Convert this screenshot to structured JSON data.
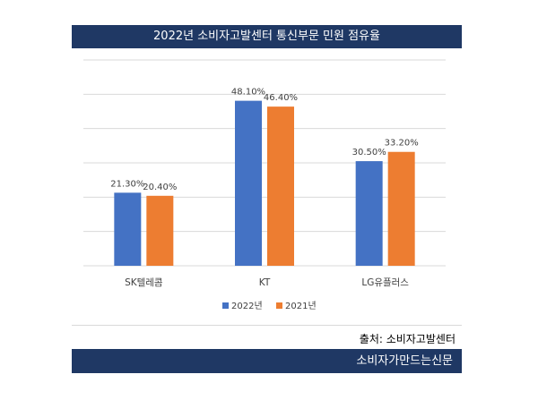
{
  "header": {
    "title": "2022년 소비자고발센터 통신부문 민원 점유율"
  },
  "source_text": "출처: 소비자고발센터",
  "footer": {
    "brand": "소비자가만드는신문"
  },
  "colors": {
    "banner": "#1f3864",
    "series_2022": "#4472c4",
    "series_2021": "#ed7d31",
    "grid": "#d9d9d9"
  },
  "chart_data": {
    "type": "bar",
    "title": "2022년 소비자고발센터 통신부문 민원 점유율",
    "categories": [
      "SK텔레콤",
      "KT",
      "LG유플러스"
    ],
    "series": [
      {
        "name": "2022년",
        "values": [
          21.3,
          48.1,
          30.5
        ],
        "labels": [
          "21.30%",
          "48.10%",
          "30.50%"
        ],
        "color": "#4472c4"
      },
      {
        "name": "2021년",
        "values": [
          20.4,
          46.4,
          33.2
        ],
        "labels": [
          "20.40%",
          "46.40%",
          "33.20%"
        ],
        "color": "#ed7d31"
      }
    ],
    "ylim": [
      0,
      60
    ],
    "grid": true,
    "legend": "bottom"
  }
}
